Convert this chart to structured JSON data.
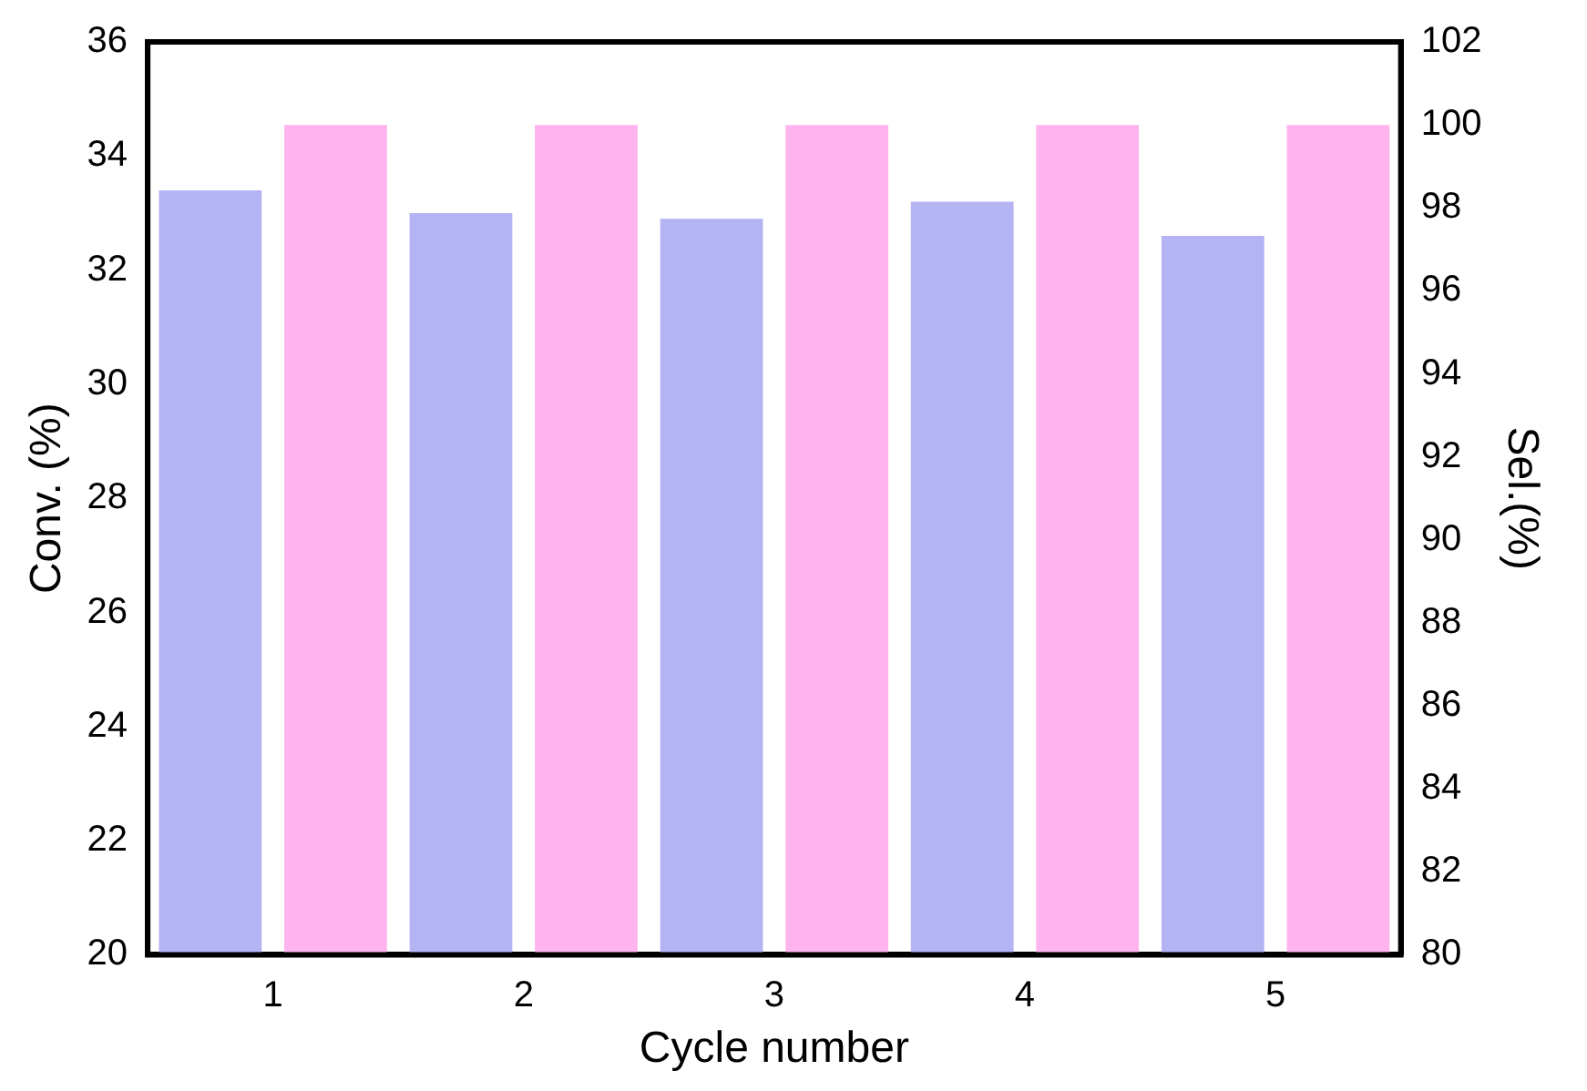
{
  "chart_data": {
    "type": "bar",
    "xlabel": "Cycle number",
    "ylabel": "Conv. (%)",
    "y2label": "Sel.(%)",
    "categories": [
      "1",
      "2",
      "3",
      "4",
      "5"
    ],
    "series": [
      {
        "color": "#b4b4f4",
        "values": [
          33.4,
          33.0,
          32.9,
          33.2,
          32.6
        ]
      },
      {
        "color": "#ffb4f0",
        "values": [
          100,
          100,
          100,
          100,
          100
        ],
        "axis": "y2"
      }
    ],
    "ylim": [
      20,
      36
    ],
    "yticks": [
      20,
      22,
      24,
      26,
      28,
      30,
      32,
      34,
      36
    ],
    "y2lim": [
      80,
      102
    ],
    "y2ticks": [
      80,
      82,
      84,
      86,
      88,
      90,
      92,
      94,
      96,
      98,
      100,
      102
    ],
    "grid": false,
    "legend": false
  }
}
